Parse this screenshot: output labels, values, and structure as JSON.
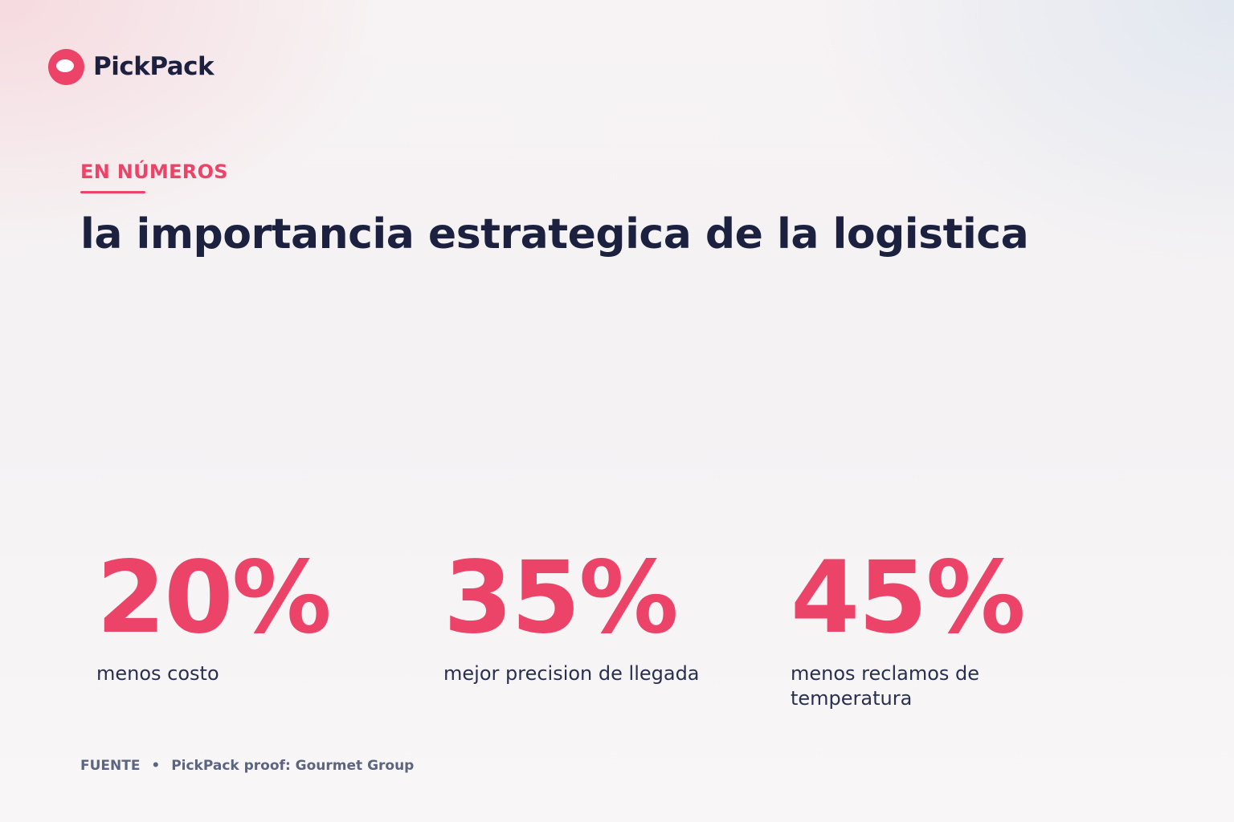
{
  "brand": {
    "logo_icon": "pickpack-logo-icon",
    "name": "PickPack",
    "accent_color": "#ec4468",
    "text_color": "#1c2140"
  },
  "header": {
    "eyebrow": "EN NÚMEROS",
    "title": "la importancia estrategica de la logistica"
  },
  "stats": [
    {
      "value": "20%",
      "label": "menos costo"
    },
    {
      "value": "35%",
      "label": "mejor precision de llegada"
    },
    {
      "value": "45%",
      "label": "menos reclamos de temperatura"
    }
  ],
  "footer": {
    "source_label": "FUENTE",
    "separator": "•",
    "source_text": "PickPack proof: Gourmet Group"
  }
}
